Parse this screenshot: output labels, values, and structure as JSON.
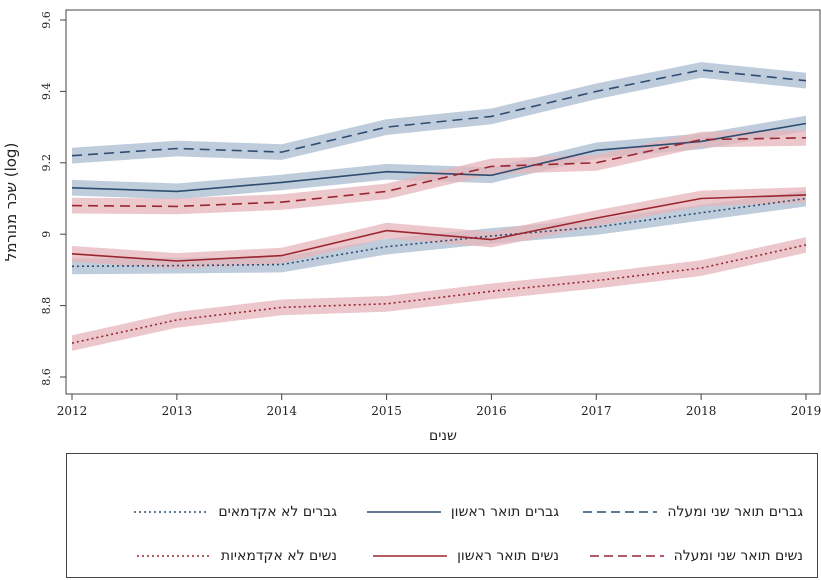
{
  "chart_data": {
    "type": "line",
    "xlabel": "שנים",
    "ylabel": "שכר מנורמל (log)",
    "x": [
      2012,
      2013,
      2014,
      2015,
      2016,
      2017,
      2018,
      2019
    ],
    "xlim": [
      2012,
      2019
    ],
    "ylim": [
      8.6,
      9.6
    ],
    "yticks": [
      8.6,
      8.8,
      9,
      9.2,
      9.4,
      9.6
    ],
    "grid": false,
    "legend_position": "bottom",
    "series": [
      {
        "name": "גברים תואר שני ומעלה",
        "color": "#2e4d70",
        "band": "#a9bbd0",
        "dash": "dashed",
        "values": [
          9.22,
          9.24,
          9.23,
          9.3,
          9.33,
          9.4,
          9.46,
          9.43
        ]
      },
      {
        "name": "גברים תואר ראשון",
        "color": "#2e4d70",
        "band": "#a9bbd0",
        "dash": "solid",
        "values": [
          9.13,
          9.12,
          9.145,
          9.175,
          9.165,
          9.235,
          9.26,
          9.31
        ]
      },
      {
        "name": "גברים לא אקדמאים",
        "color": "#2e4d70",
        "band": "#a9bbd0",
        "dash": "dotted",
        "values": [
          8.91,
          8.912,
          8.915,
          8.965,
          8.995,
          9.02,
          9.06,
          9.1
        ]
      },
      {
        "name": "נשים תואר שני ומעלה",
        "color": "#9b2630",
        "band": "#e6b5bb",
        "dash": "dashed",
        "values": [
          9.08,
          9.078,
          9.09,
          9.12,
          9.19,
          9.2,
          9.265,
          9.27
        ]
      },
      {
        "name": "נשים תואר ראשון",
        "color": "#9b2630",
        "band": "#e6b5bb",
        "dash": "solid",
        "values": [
          8.945,
          8.925,
          8.94,
          9.01,
          8.985,
          9.045,
          9.1,
          9.11
        ]
      },
      {
        "name": "נשים לא אקדמאיות",
        "color": "#9b2630",
        "band": "#e6b5bb",
        "dash": "dotted",
        "values": [
          8.695,
          8.76,
          8.795,
          8.805,
          8.84,
          8.87,
          8.905,
          8.97
        ]
      }
    ]
  }
}
